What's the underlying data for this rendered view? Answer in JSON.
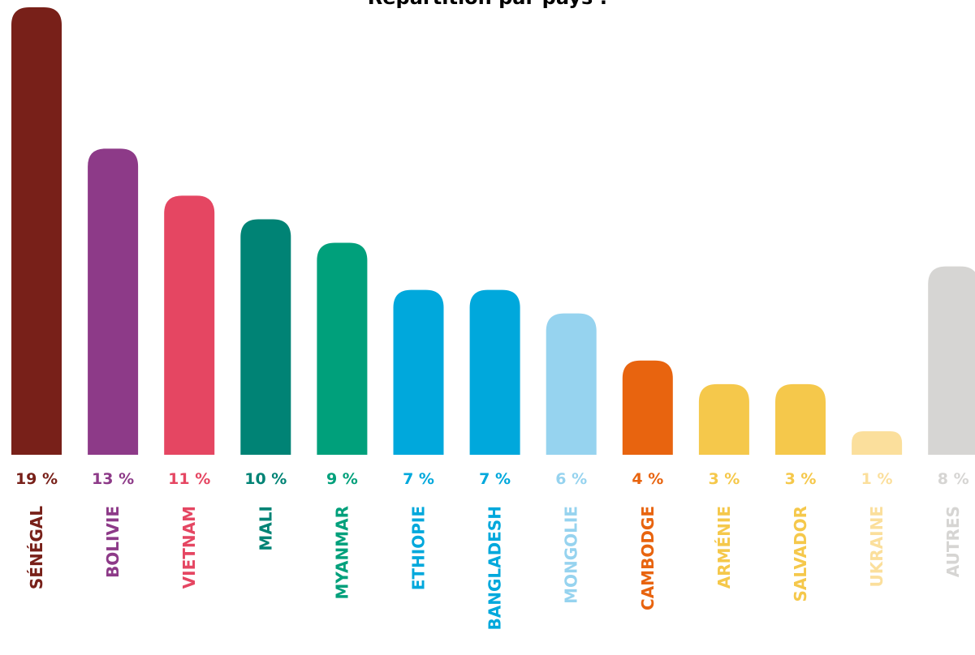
{
  "chart_data": {
    "type": "bar",
    "title": "Répartition par pays :",
    "categories": [
      "SÉNÉGAL",
      "BOLIVIE",
      "VIETNAM",
      "MALI",
      "MYANMAR",
      "ETHIOPIE",
      "BANGLADESH",
      "MONGOLIE",
      "CAMBODGE",
      "ARMÉNIE",
      "SALVADOR",
      "UKRAINE",
      "AUTRES"
    ],
    "values": [
      19,
      13,
      11,
      10,
      9,
      7,
      7,
      6,
      4,
      3,
      3,
      1,
      8
    ],
    "value_labels": [
      "19 %",
      "13 %",
      "11 %",
      "10 %",
      "9 %",
      "7 %",
      "7 %",
      "6 %",
      "4 %",
      "3 %",
      "3 %",
      "1 %",
      "8 %"
    ],
    "colors": [
      "#782019",
      "#8d3a88",
      "#e54662",
      "#008375",
      "#00a07b",
      "#00a8dc",
      "#00a8dc",
      "#96d3ef",
      "#e8640f",
      "#f5c84b",
      "#f5c84b",
      "#fbdf9c",
      "#d6d5d3"
    ],
    "xlabel": "",
    "ylabel": "",
    "grid": false,
    "legend": "none"
  }
}
